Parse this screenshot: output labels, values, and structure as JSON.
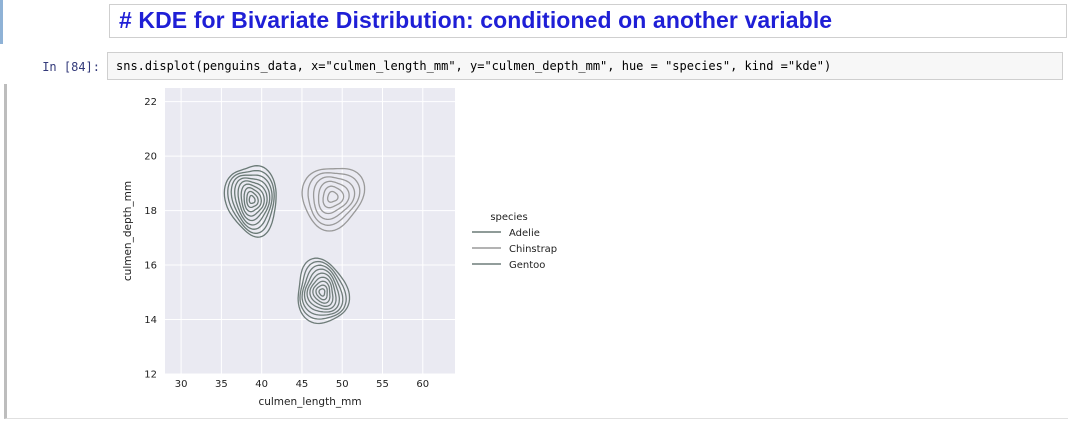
{
  "markdown_cell": {
    "heading": "# KDE for Bivariate Distribution: conditioned on another variable"
  },
  "code_cell": {
    "prompt": "In [84]:",
    "code": "sns.displot(penguins_data, x=\"culmen_length_mm\", y=\"culmen_depth_mm\", hue = \"species\", kind =\"kde\")"
  },
  "chart_data": {
    "type": "kde-contour",
    "xlabel": "culmen_length_mm",
    "ylabel": "culmen_depth_mm",
    "xlim": [
      28,
      64
    ],
    "ylim": [
      12,
      22.5
    ],
    "xticks": [
      30,
      35,
      40,
      45,
      50,
      55,
      60
    ],
    "yticks": [
      12,
      14,
      16,
      18,
      20,
      22
    ],
    "grid": true,
    "legend_title": "species",
    "legend_position": "right",
    "series": [
      {
        "name": "Adelie",
        "color": "#6a7a76",
        "center": [
          38.8,
          18.4
        ],
        "spread": [
          3.0,
          1.35
        ],
        "levels": 9
      },
      {
        "name": "Chinstrap",
        "color": "#9a9a9a",
        "center": [
          48.8,
          18.5
        ],
        "spread": [
          3.6,
          1.2
        ],
        "levels": 6
      },
      {
        "name": "Gentoo",
        "color": "#6f7d7a",
        "center": [
          47.5,
          15.0
        ],
        "spread": [
          3.2,
          1.15
        ],
        "levels": 9
      }
    ]
  }
}
